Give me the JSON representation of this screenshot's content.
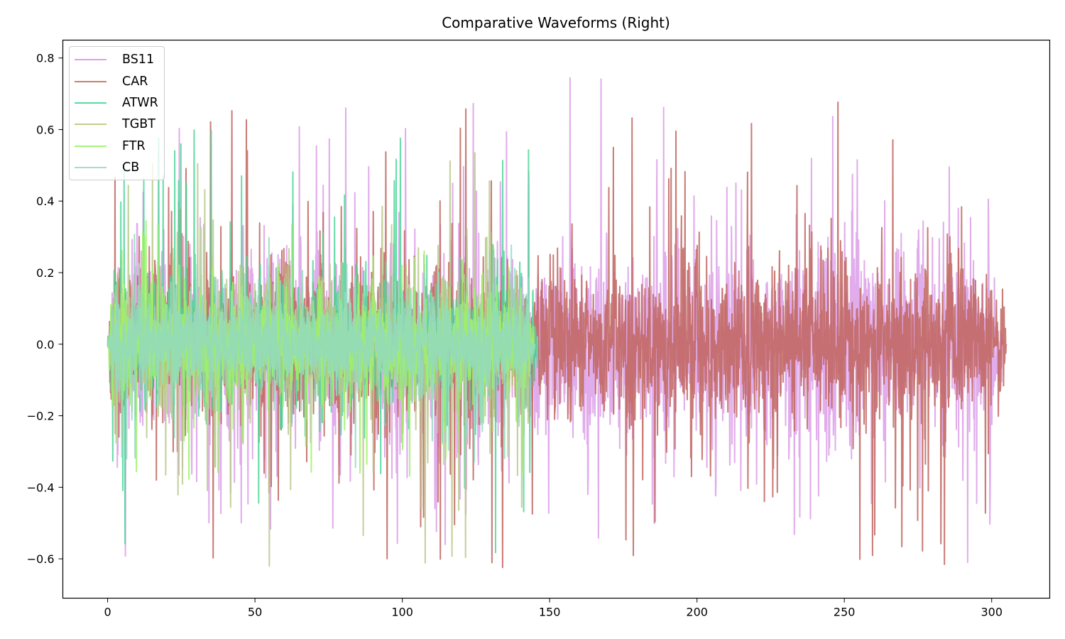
{
  "chart_data": {
    "type": "line",
    "title": "Comparative Waveforms (Right)",
    "xlabel": "",
    "ylabel": "",
    "xlim": [
      -15.2,
      319.7
    ],
    "ylim": [
      -0.71,
      0.85
    ],
    "xticks": [
      0,
      50,
      100,
      150,
      200,
      250,
      300
    ],
    "yticks": [
      0.8,
      0.6,
      0.4,
      0.2,
      0.0,
      -0.2,
      -0.4,
      -0.6
    ],
    "ytick_labels": [
      "0.8",
      "0.6",
      "0.4",
      "0.2",
      "0.0",
      "−0.2",
      "−0.4",
      "−0.6"
    ],
    "xtick_labels": [
      "0",
      "50",
      "100",
      "150",
      "200",
      "250",
      "300"
    ],
    "grid": false,
    "legend_position": "upper left",
    "series": [
      {
        "name": "BS11",
        "color": "#dc9ee8",
        "alpha": 0.85,
        "x_start": 0,
        "x_end": 304,
        "typical_envelope": 0.3,
        "max": 0.78,
        "min": -0.61
      },
      {
        "name": "CAR",
        "color": "#c0645e",
        "alpha": 0.85,
        "x_start": 0,
        "x_end": 305,
        "typical_envelope": 0.25,
        "max": 0.68,
        "min": -0.63
      },
      {
        "name": "ATWR",
        "color": "#4fd69a",
        "alpha": 0.85,
        "x_start": 0,
        "x_end": 146,
        "typical_envelope": 0.2,
        "max": 0.6,
        "min": -0.6
      },
      {
        "name": "TGBT",
        "color": "#b9c98a",
        "alpha": 0.85,
        "x_start": 0,
        "x_end": 145,
        "typical_envelope": 0.2,
        "max": 0.56,
        "min": -0.62
      },
      {
        "name": "FTR",
        "color": "#9ef26a",
        "alpha": 0.85,
        "x_start": 0,
        "x_end": 145,
        "typical_envelope": 0.15,
        "max": 0.35,
        "min": -0.38
      },
      {
        "name": "CB",
        "color": "#93d9c0",
        "alpha": 0.85,
        "x_start": 0,
        "x_end": 145,
        "typical_envelope": 0.15,
        "max": 0.31,
        "min": -0.35
      }
    ],
    "notes": "Audio-like waveforms; BS11 and CAR span ~0-305 s, other four series span ~0-146 s. Dense central band mostly within ±0.2."
  },
  "legend": {
    "items": [
      {
        "label": "BS11",
        "color": "#dc9ee8"
      },
      {
        "label": "CAR",
        "color": "#c7806c"
      },
      {
        "label": "ATWR",
        "color": "#5bd9a3"
      },
      {
        "label": "TGBT",
        "color": "#c3cc8e"
      },
      {
        "label": "FTR",
        "color": "#a6f27a"
      },
      {
        "label": "CB",
        "color": "#a6dcc8"
      }
    ]
  }
}
